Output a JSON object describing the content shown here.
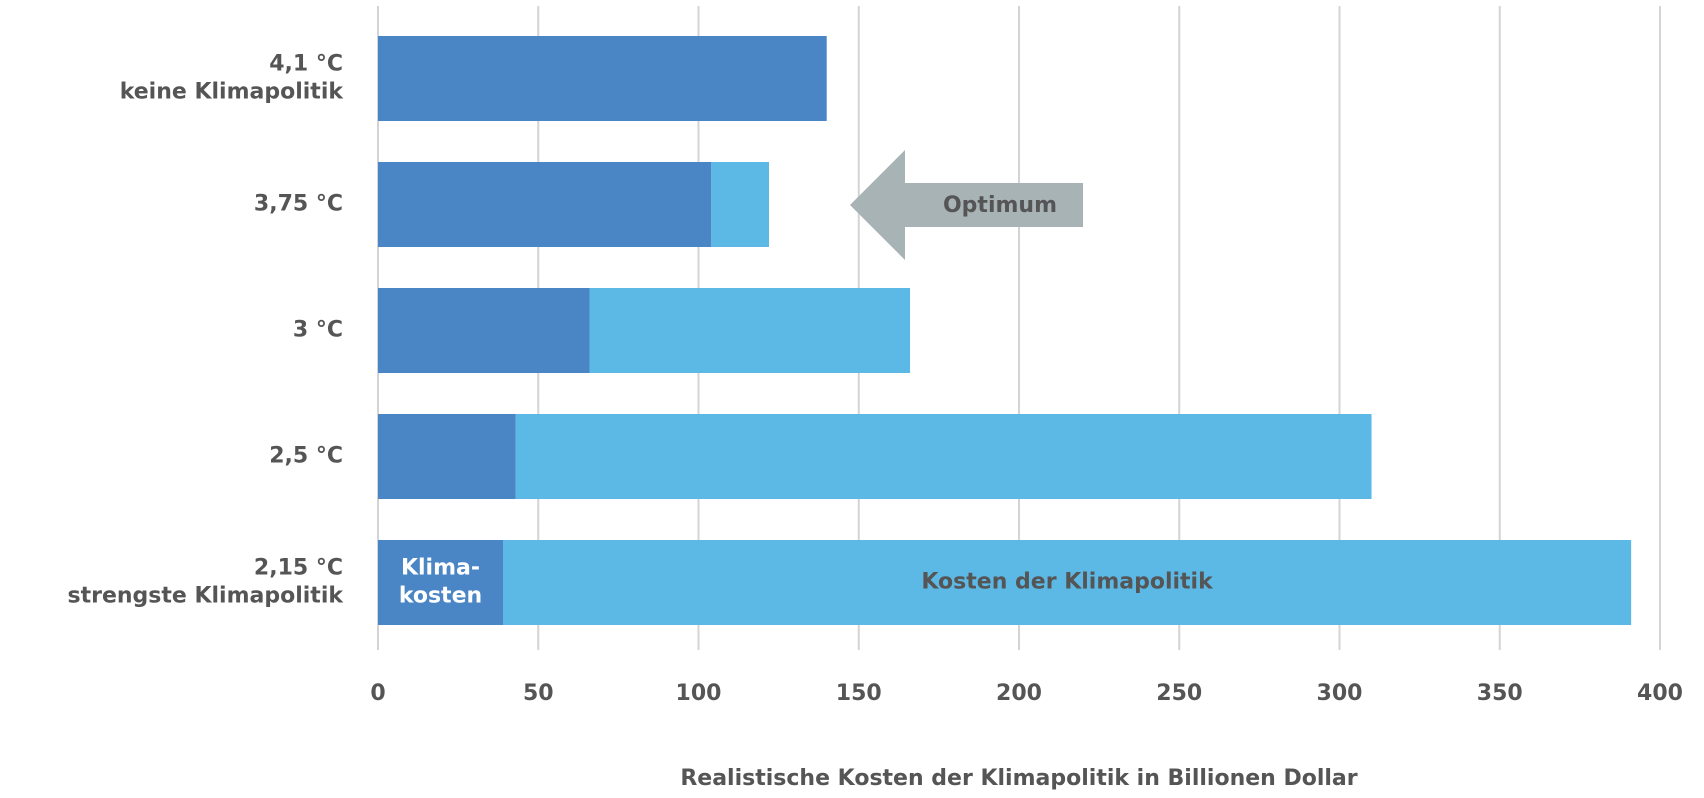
{
  "chart_data": {
    "type": "stacked-barh",
    "x_label": "Realistische Kosten der Klimapolitik in Billionen Dollar",
    "categories": [
      "4,1 °C\nkeine Klimapolitik",
      "3,75 °C",
      "3 °C",
      "2,5 °C",
      "2,15 °C\nstrengste Klimapolitik"
    ],
    "series": [
      {
        "name": "Klima-\nkosten",
        "color": "#4a86c5",
        "values": [
          140,
          104,
          66,
          43,
          39
        ]
      },
      {
        "name": "Kosten der Klimapolitik",
        "color": "#5cb9e5",
        "values": [
          0,
          18,
          100,
          267,
          352
        ]
      }
    ],
    "xlim": [
      0,
      400
    ],
    "xticks": [
      0,
      50,
      100,
      150,
      200,
      250,
      300,
      350,
      400
    ],
    "grid": true,
    "annotation": "Optimum"
  }
}
